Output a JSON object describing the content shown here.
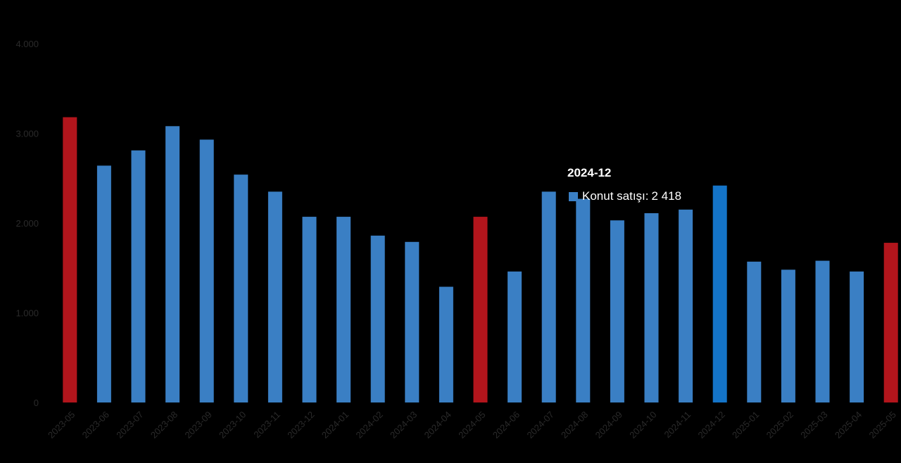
{
  "chart_data": {
    "type": "bar",
    "title": "",
    "xlabel": "",
    "ylabel": "",
    "ylim": [
      0,
      4000
    ],
    "yticks": [
      0,
      1000,
      2000,
      3000,
      4000
    ],
    "ytick_labels": [
      "0",
      "1.000",
      "2.000",
      "3.000",
      "4.000"
    ],
    "grid": false,
    "categories": [
      "2023-05",
      "2023-06",
      "2023-07",
      "2023-08",
      "2023-09",
      "2023-10",
      "2023-11",
      "2023-12",
      "2024-01",
      "2024-02",
      "2024-03",
      "2024-04",
      "2024-05",
      "2024-06",
      "2024-07",
      "2024-08",
      "2024-09",
      "2024-10",
      "2024-11",
      "2024-12",
      "2025-01",
      "2025-02",
      "2025-03",
      "2025-04",
      "2025-05"
    ],
    "series": [
      {
        "name": "Konut satışı",
        "values": [
          3180,
          2640,
          2810,
          3080,
          2930,
          2540,
          2350,
          2070,
          2070,
          1860,
          1790,
          1290,
          2070,
          1460,
          2350,
          2270,
          2030,
          2110,
          2150,
          2418,
          1570,
          1480,
          1580,
          1460,
          1780
        ],
        "colors": [
          "#b2151c",
          "#3a7fc4",
          "#3a7fc4",
          "#3a7fc4",
          "#3a7fc4",
          "#3a7fc4",
          "#3a7fc4",
          "#3a7fc4",
          "#3a7fc4",
          "#3a7fc4",
          "#3a7fc4",
          "#3a7fc4",
          "#b2151c",
          "#3a7fc4",
          "#3a7fc4",
          "#3a7fc4",
          "#3a7fc4",
          "#3a7fc4",
          "#3a7fc4",
          "#1474c8",
          "#3a7fc4",
          "#3a7fc4",
          "#3a7fc4",
          "#3a7fc4",
          "#b2151c"
        ]
      }
    ],
    "highlight_index": 19,
    "colors": {
      "default_bar": "#3a7fc4",
      "highlight_bar": "#b2151c",
      "hover_bar": "#1474c8",
      "background": "#000000",
      "tick_text": "#2a2a2a",
      "tooltip_text": "#ffffff"
    }
  },
  "tooltip": {
    "title": "2024-12",
    "series_label": "Konut satışı:",
    "value_text": "2 418"
  }
}
